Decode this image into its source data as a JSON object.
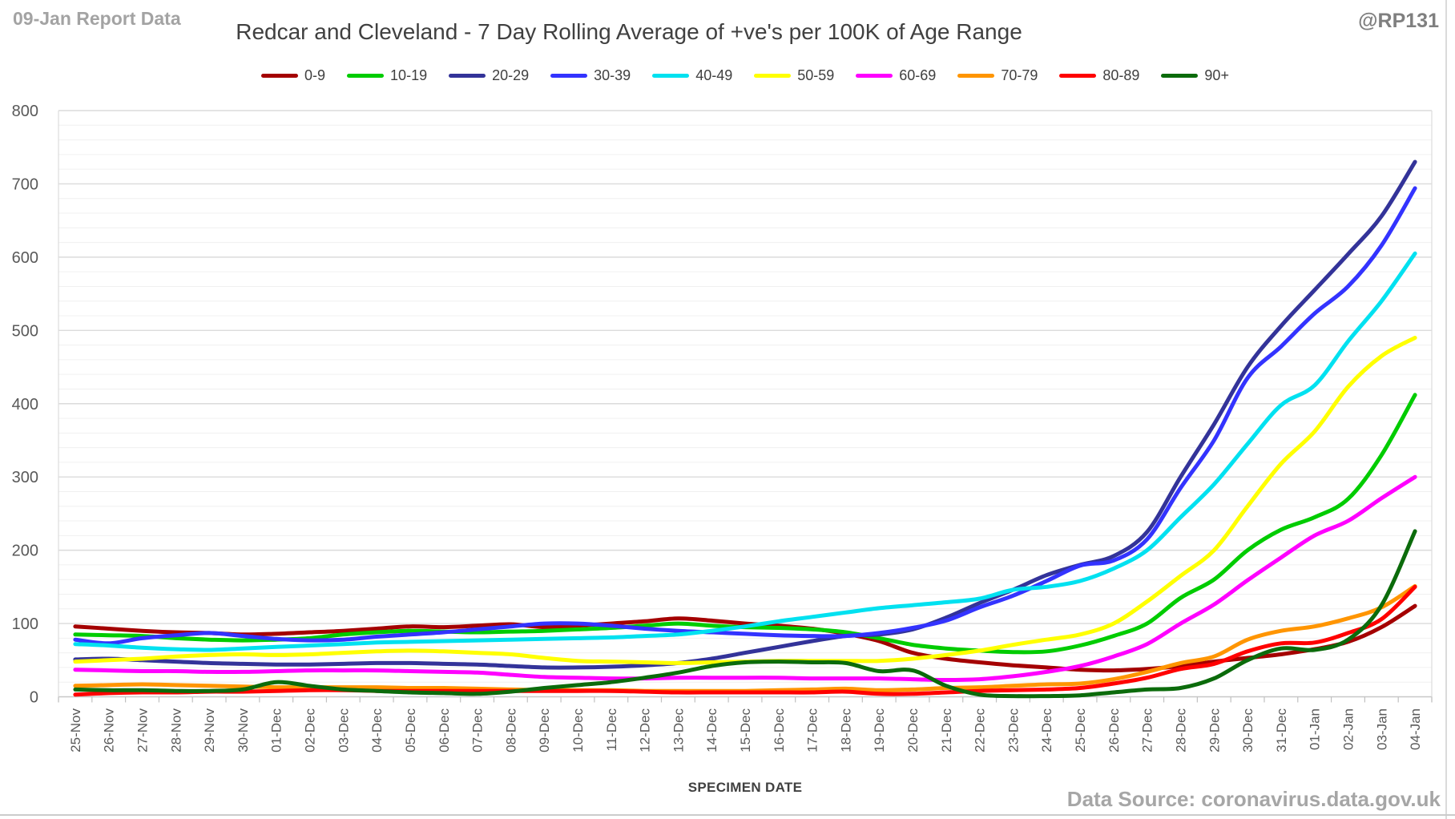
{
  "header": {
    "report_label": "09-Jan Report Data",
    "title": "Redcar and Cleveland - 7 Day Rolling Average of +ve's per 100K of Age Range",
    "handle": "@RP131"
  },
  "footer": {
    "xaxis_title": "SPECIMEN DATE",
    "source": "Data Source: coronavirus.data.gov.uk"
  },
  "colors": {
    "title_text": "#404040",
    "muted_text": "#A3A3A3",
    "axis_text": "#595959",
    "minor_grid": "#F0F0F0",
    "major_grid": "#DBDBDB",
    "zero_line": "#C8C8C8",
    "tick": "#C0C0C0",
    "plot_border": "#DCDCDC"
  },
  "chart_data": {
    "type": "line",
    "title": "Redcar and Cleveland - 7 Day Rolling Average of +ve's per 100K of Age Range",
    "xlabel": "SPECIMEN DATE",
    "ylabel": "",
    "ylim": [
      0,
      800
    ],
    "y_major_step": 100,
    "y_minor_step": 20,
    "grid": "horizontal-only",
    "legend_position": "top",
    "smoothed_lines": true,
    "x": [
      "25-Nov",
      "26-Nov",
      "27-Nov",
      "28-Nov",
      "29-Nov",
      "30-Nov",
      "01-Dec",
      "02-Dec",
      "03-Dec",
      "04-Dec",
      "05-Dec",
      "06-Dec",
      "07-Dec",
      "08-Dec",
      "09-Dec",
      "10-Dec",
      "11-Dec",
      "12-Dec",
      "13-Dec",
      "14-Dec",
      "15-Dec",
      "16-Dec",
      "17-Dec",
      "18-Dec",
      "19-Dec",
      "20-Dec",
      "21-Dec",
      "22-Dec",
      "23-Dec",
      "24-Dec",
      "25-Dec",
      "26-Dec",
      "27-Dec",
      "28-Dec",
      "29-Dec",
      "30-Dec",
      "31-Dec",
      "01-Jan",
      "02-Jan",
      "03-Jan",
      "04-Jan"
    ],
    "series": [
      {
        "name": "0-9",
        "color": "#A40000",
        "values": [
          96,
          93,
          90,
          88,
          87,
          85,
          86,
          88,
          90,
          93,
          96,
          95,
          97,
          99,
          95,
          97,
          100,
          103,
          107,
          104,
          100,
          97,
          93,
          86,
          76,
          60,
          52,
          47,
          43,
          40,
          37,
          36,
          38,
          42,
          48,
          53,
          58,
          65,
          75,
          95,
          124
        ]
      },
      {
        "name": "10-19",
        "color": "#00CC00",
        "values": [
          85,
          84,
          83,
          80,
          78,
          77,
          78,
          80,
          85,
          88,
          90,
          89,
          88,
          89,
          90,
          92,
          94,
          97,
          100,
          97,
          95,
          94,
          92,
          88,
          80,
          71,
          66,
          63,
          61,
          62,
          70,
          83,
          100,
          135,
          160,
          200,
          228,
          245,
          270,
          330,
          412
        ]
      },
      {
        "name": "20-29",
        "color": "#333399",
        "values": [
          51,
          52,
          50,
          48,
          46,
          45,
          44,
          44,
          45,
          46,
          46,
          45,
          44,
          42,
          40,
          40,
          41,
          43,
          46,
          52,
          60,
          68,
          76,
          83,
          85,
          92,
          108,
          128,
          146,
          166,
          180,
          192,
          225,
          300,
          372,
          450,
          506,
          555,
          604,
          656,
          730
        ]
      },
      {
        "name": "30-39",
        "color": "#3333FF",
        "values": [
          78,
          73,
          80,
          84,
          87,
          83,
          79,
          77,
          78,
          82,
          85,
          88,
          92,
          96,
          100,
          100,
          97,
          93,
          90,
          88,
          86,
          84,
          83,
          83,
          87,
          94,
          104,
          122,
          138,
          158,
          179,
          186,
          215,
          285,
          350,
          435,
          478,
          523,
          560,
          616,
          694
        ]
      },
      {
        "name": "40-49",
        "color": "#00E1F0",
        "values": [
          72,
          70,
          67,
          65,
          64,
          66,
          68,
          70,
          72,
          74,
          75,
          76,
          77,
          78,
          79,
          80,
          81,
          83,
          85,
          90,
          96,
          103,
          109,
          115,
          121,
          125,
          129,
          134,
          146,
          150,
          158,
          175,
          200,
          245,
          290,
          345,
          398,
          425,
          485,
          540,
          605
        ]
      },
      {
        "name": "50-59",
        "color": "#FFFF00",
        "values": [
          48,
          50,
          52,
          55,
          57,
          58,
          57,
          58,
          60,
          62,
          63,
          62,
          60,
          58,
          53,
          49,
          48,
          47,
          46,
          47,
          48,
          49,
          49,
          49,
          49,
          52,
          57,
          63,
          71,
          78,
          85,
          100,
          130,
          165,
          200,
          260,
          318,
          362,
          423,
          465,
          490
        ]
      },
      {
        "name": "60-69",
        "color": "#FF00FF",
        "values": [
          37,
          36,
          35,
          35,
          34,
          34,
          35,
          36,
          36,
          36,
          35,
          34,
          33,
          30,
          27,
          26,
          25,
          25,
          26,
          26,
          26,
          26,
          25,
          25,
          25,
          24,
          23,
          24,
          28,
          34,
          42,
          55,
          72,
          100,
          126,
          159,
          190,
          220,
          240,
          271,
          300
        ]
      },
      {
        "name": "70-79",
        "color": "#FF9500",
        "values": [
          15,
          16,
          17,
          16,
          15,
          14,
          13,
          13,
          13,
          13,
          12,
          12,
          11,
          10,
          9,
          9,
          9,
          8,
          8,
          8,
          8,
          9,
          10,
          11,
          9,
          10,
          12,
          13,
          15,
          17,
          18,
          24,
          34,
          46,
          55,
          78,
          90,
          96,
          107,
          122,
          151
        ]
      },
      {
        "name": "80-89",
        "color": "#FF0000",
        "values": [
          3,
          5,
          6,
          6,
          7,
          7,
          8,
          9,
          9,
          8,
          8,
          8,
          8,
          8,
          8,
          8,
          8,
          7,
          6,
          6,
          6,
          6,
          6,
          7,
          4,
          4,
          6,
          8,
          9,
          10,
          12,
          18,
          26,
          38,
          45,
          62,
          73,
          74,
          87,
          106,
          150
        ]
      },
      {
        "name": "90+",
        "color": "#0B6B0B",
        "values": [
          10,
          9,
          9,
          8,
          8,
          10,
          20,
          15,
          10,
          8,
          6,
          5,
          4,
          7,
          12,
          16,
          20,
          26,
          33,
          42,
          47,
          48,
          47,
          46,
          35,
          36,
          15,
          3,
          1,
          1,
          2,
          6,
          10,
          12,
          25,
          50,
          66,
          64,
          78,
          125,
          226
        ]
      }
    ]
  }
}
